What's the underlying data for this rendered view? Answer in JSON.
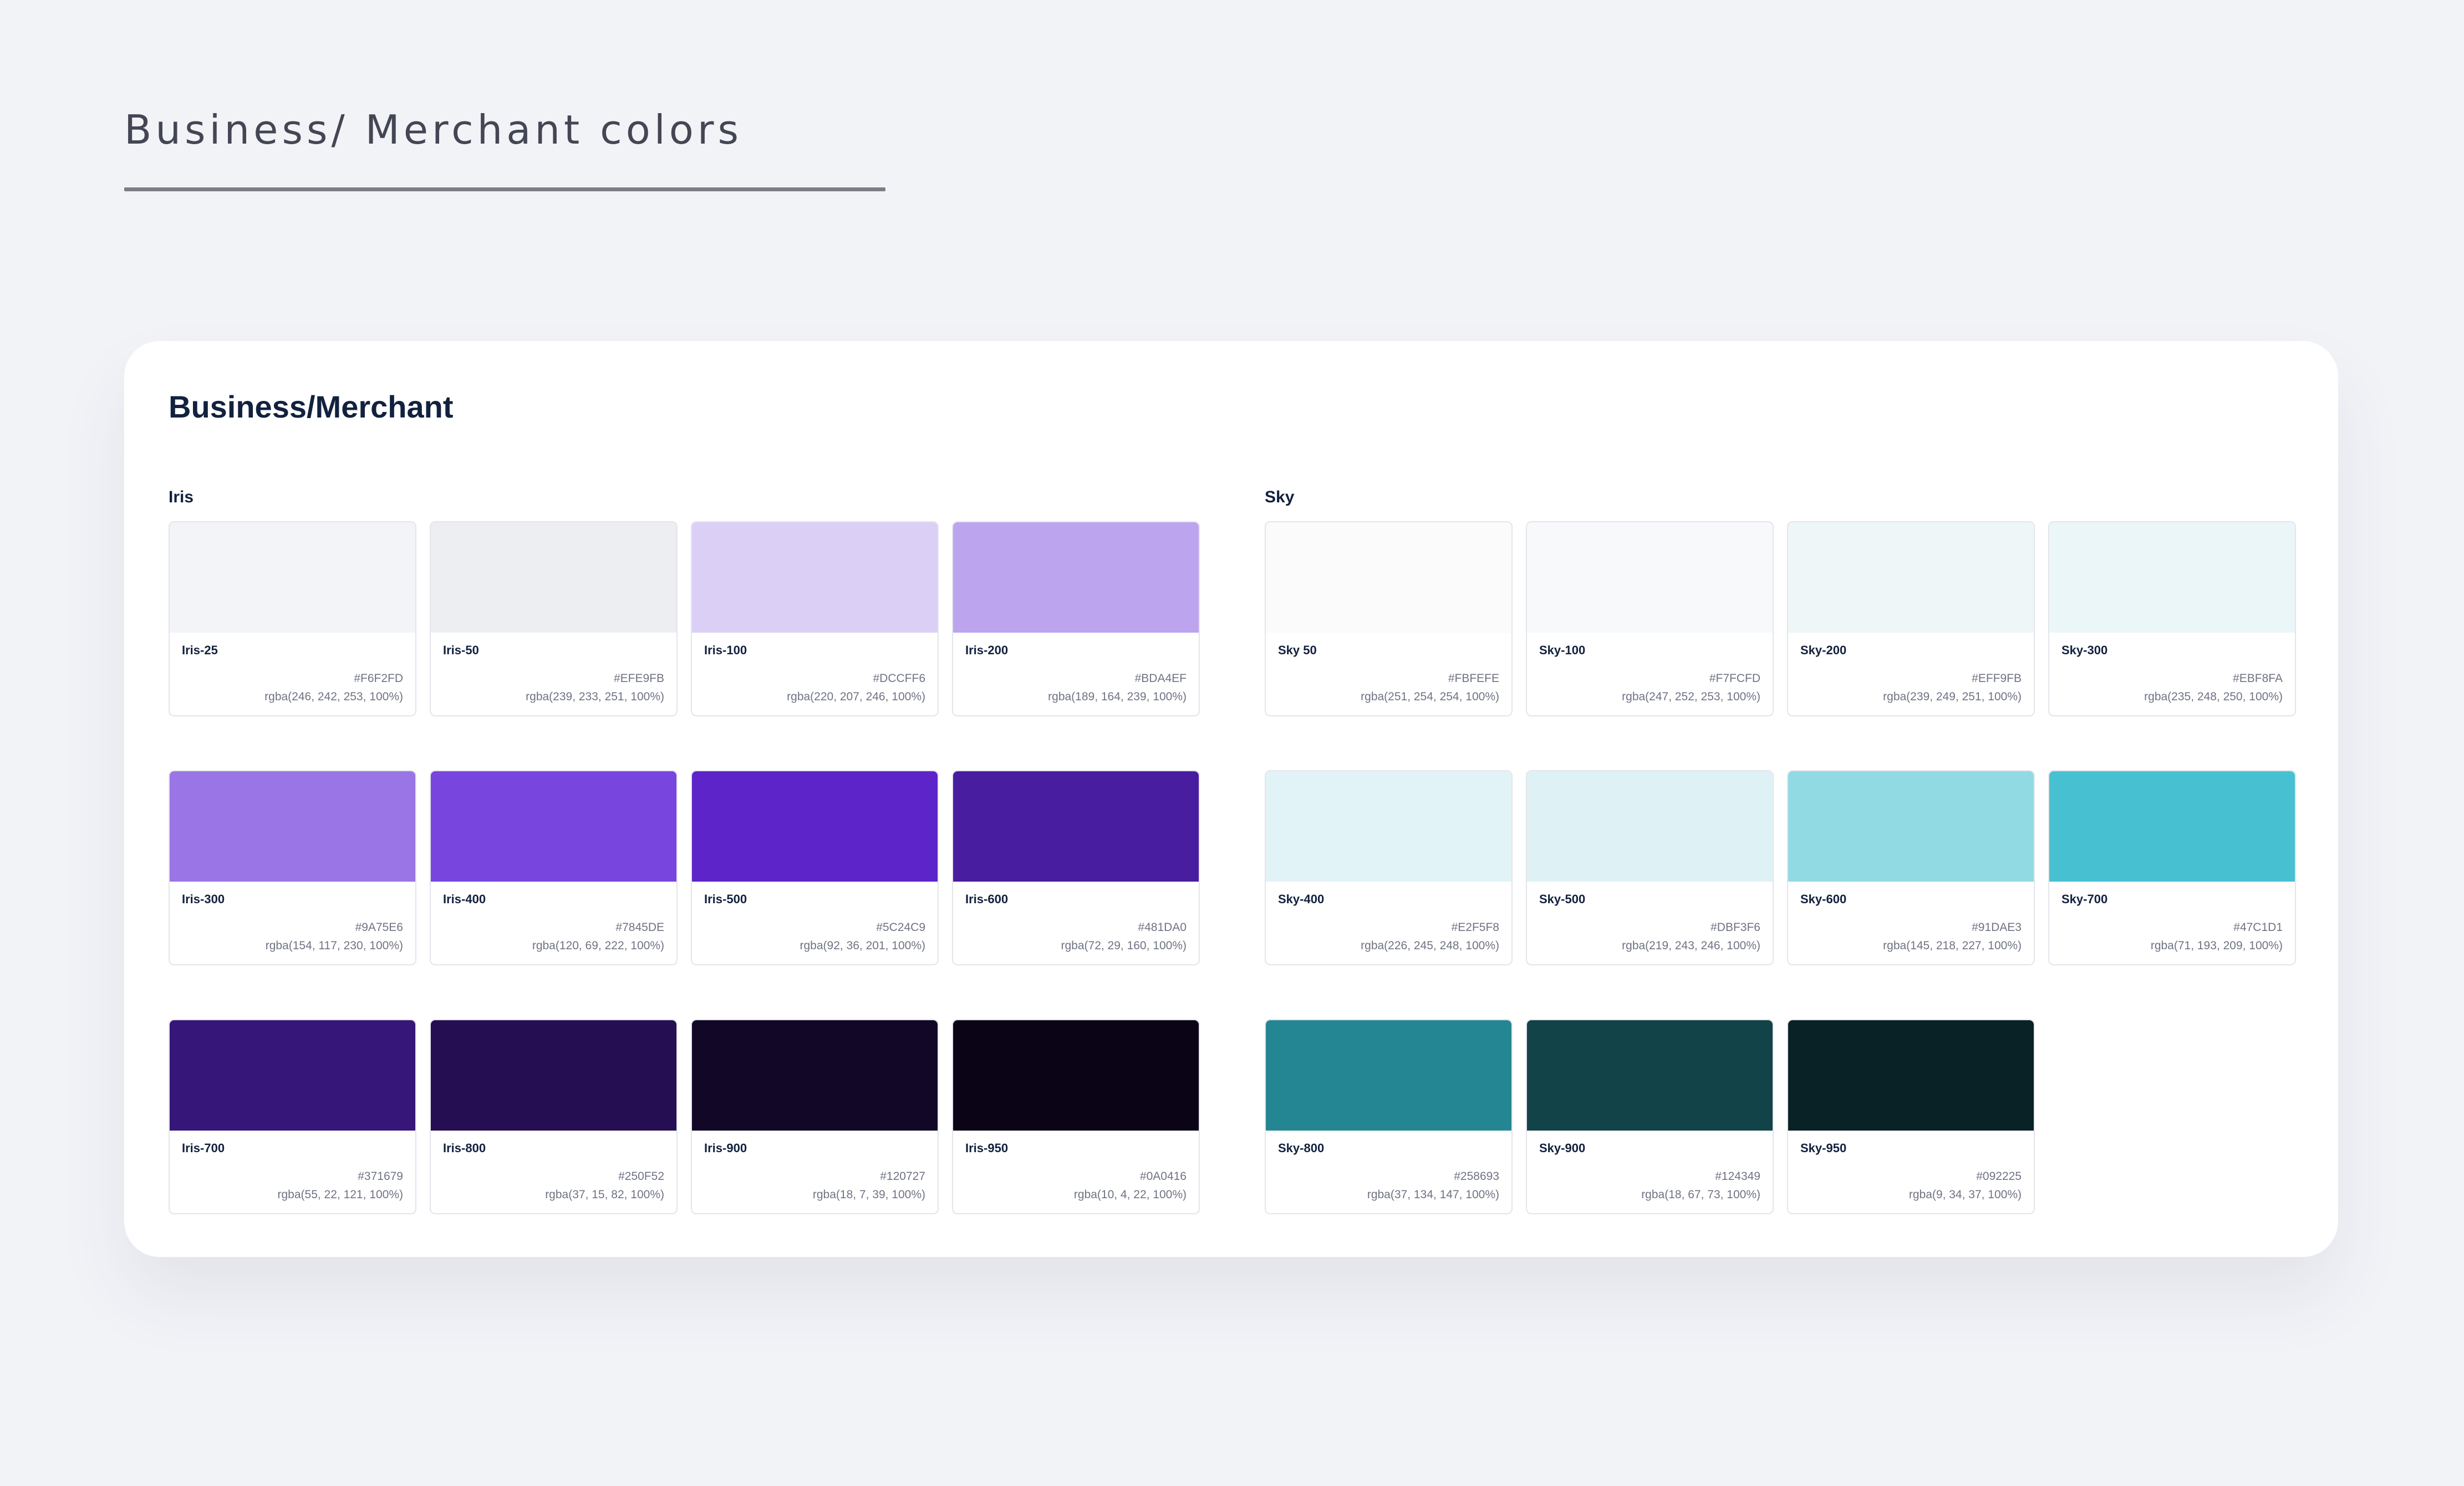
{
  "page": {
    "title": "Business/ Merchant colors"
  },
  "card": {
    "title": "Business/Merchant"
  },
  "groups": [
    {
      "label": "Iris",
      "swatches": [
        {
          "name": "Iris-25",
          "hex": "#F6F2FD",
          "rgba": "rgba(246, 242, 253, 100%)",
          "color": "#F3F4F7"
        },
        {
          "name": "Iris-50",
          "hex": "#EFE9FB",
          "rgba": "rgba(239, 233, 251, 100%)",
          "color": "#EDEEF2"
        },
        {
          "name": "Iris-100",
          "hex": "#DCCFF6",
          "rgba": "rgba(220, 207, 246, 100%)",
          "color": "#DCCFF6"
        },
        {
          "name": "Iris-200",
          "hex": "#BDA4EF",
          "rgba": "rgba(189, 164, 239, 100%)",
          "color": "#BDA4EF"
        },
        {
          "name": "Iris-300",
          "hex": "#9A75E6",
          "rgba": "rgba(154, 117, 230, 100%)",
          "color": "#9A75E6"
        },
        {
          "name": "Iris-400",
          "hex": "#7845DE",
          "rgba": "rgba(120, 69, 222, 100%)",
          "color": "#7845DE"
        },
        {
          "name": "Iris-500",
          "hex": "#5C24C9",
          "rgba": "rgba(92, 36, 201, 100%)",
          "color": "#5C24C9"
        },
        {
          "name": "Iris-600",
          "hex": "#481DA0",
          "rgba": "rgba(72, 29, 160, 100%)",
          "color": "#481DA0"
        },
        {
          "name": "Iris-700",
          "hex": "#371679",
          "rgba": "rgba(55, 22, 121, 100%)",
          "color": "#371679"
        },
        {
          "name": "Iris-800",
          "hex": "#250F52",
          "rgba": "rgba(37, 15, 82, 100%)",
          "color": "#250F52"
        },
        {
          "name": "Iris-900",
          "hex": "#120727",
          "rgba": "rgba(18, 7, 39, 100%)",
          "color": "#120727"
        },
        {
          "name": "Iris-950",
          "hex": "#0A0416",
          "rgba": "rgba(10, 4, 22, 100%)",
          "color": "#0A0416"
        }
      ]
    },
    {
      "label": "Sky",
      "swatches": [
        {
          "name": "Sky 50",
          "hex": "#FBFEFE",
          "rgba": "rgba(251, 254, 254, 100%)",
          "color": "#FBFBFC"
        },
        {
          "name": "Sky-100",
          "hex": "#F7FCFD",
          "rgba": "rgba(247, 252, 253, 100%)",
          "color": "#F7F9FB"
        },
        {
          "name": "Sky-200",
          "hex": "#EFF9FB",
          "rgba": "rgba(239, 249, 251, 100%)",
          "color": "#EFF6F8"
        },
        {
          "name": "Sky-300",
          "hex": "#EBF8FA",
          "rgba": "rgba(235, 248, 250, 100%)",
          "color": "#EBF6F8"
        },
        {
          "name": "Sky-400",
          "hex": "#E2F5F8",
          "rgba": "rgba(226, 245, 248, 100%)",
          "color": "#E2F3F7"
        },
        {
          "name": "Sky-500",
          "hex": "#DBF3F6",
          "rgba": "rgba(219, 243, 246, 100%)",
          "color": "#DEF2F5"
        },
        {
          "name": "Sky-600",
          "hex": "#91DAE3",
          "rgba": "rgba(145, 218, 227, 100%)",
          "color": "#91DAE3"
        },
        {
          "name": "Sky-700",
          "hex": "#47C1D1",
          "rgba": "rgba(71, 193, 209, 100%)",
          "color": "#47C1D1"
        },
        {
          "name": "Sky-800",
          "hex": "#258693",
          "rgba": "rgba(37, 134, 147, 100%)",
          "color": "#258693"
        },
        {
          "name": "Sky-900",
          "hex": "#124349",
          "rgba": "rgba(18, 67, 73, 100%)",
          "color": "#124349"
        },
        {
          "name": "Sky-950",
          "hex": "#092225",
          "rgba": "rgba(9, 34, 37, 100%)",
          "color": "#092225"
        }
      ]
    }
  ]
}
